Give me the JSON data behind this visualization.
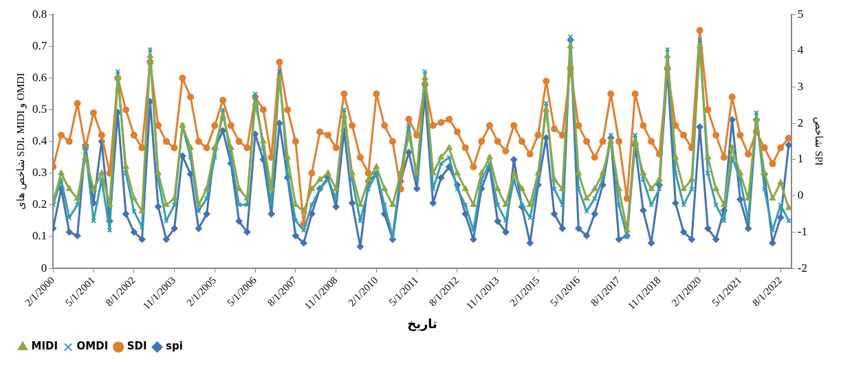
{
  "chart_data": {
    "type": "line",
    "xlabel": "تاریخ",
    "ylabel": "شاخص های SDI، MIDI و OMDI",
    "y2label": "شاخص SPI",
    "legend": "bottom left",
    "x": [
      "2000-02",
      "2000-05",
      "2000-08",
      "2000-11",
      "2001-02",
      "2001-05",
      "2001-08",
      "2001-11",
      "2002-02",
      "2002-05",
      "2002-08",
      "2002-11",
      "2003-02",
      "2003-05",
      "2003-08",
      "2003-11",
      "2004-02",
      "2004-05",
      "2004-08",
      "2004-11",
      "2005-02",
      "2005-05",
      "2005-08",
      "2005-11",
      "2006-02",
      "2006-05",
      "2006-08",
      "2006-11",
      "2007-02",
      "2007-05",
      "2007-08",
      "2007-11",
      "2008-02",
      "2008-05",
      "2008-08",
      "2008-11",
      "2009-02",
      "2009-05",
      "2009-08",
      "2009-11",
      "2010-02",
      "2010-05",
      "2010-08",
      "2010-11",
      "2011-02",
      "2011-05",
      "2011-08",
      "2011-11",
      "2012-02",
      "2012-05",
      "2012-08",
      "2012-11",
      "2013-02",
      "2013-05",
      "2013-08",
      "2013-11",
      "2014-02",
      "2014-05",
      "2014-08",
      "2014-11",
      "2015-02",
      "2015-05",
      "2015-08",
      "2015-11",
      "2016-02",
      "2016-05",
      "2016-08",
      "2016-11",
      "2017-02",
      "2017-05",
      "2017-08",
      "2017-11",
      "2018-02",
      "2018-05",
      "2018-08",
      "2018-11",
      "2019-02",
      "2019-05",
      "2019-08",
      "2019-11",
      "2020-02",
      "2020-05",
      "2020-08",
      "2020-11",
      "2021-02",
      "2021-05",
      "2021-08",
      "2021-11",
      "2022-02",
      "2022-05",
      "2022-08",
      "2022-11"
    ],
    "xlim": [
      "2000-02",
      "2022-12"
    ],
    "xticks": [
      {
        "value": "2000-02",
        "label": "2/1/2000"
      },
      {
        "value": "2001-05",
        "label": "5/1/2001"
      },
      {
        "value": "2002-08",
        "label": "8/1/2002"
      },
      {
        "value": "2003-11",
        "label": "11/1/2003"
      },
      {
        "value": "2005-02",
        "label": "2/1/2005"
      },
      {
        "value": "2006-05",
        "label": "5/1/2006"
      },
      {
        "value": "2007-08",
        "label": "8/1/2007"
      },
      {
        "value": "2008-11",
        "label": "11/1/2008"
      },
      {
        "value": "2010-02",
        "label": "2/1/2010"
      },
      {
        "value": "2011-05",
        "label": "5/1/2011"
      },
      {
        "value": "2012-08",
        "label": "8/1/2012"
      },
      {
        "value": "2013-11",
        "label": "11/1/2013"
      },
      {
        "value": "2015-02",
        "label": "2/1/2015"
      },
      {
        "value": "2016-05",
        "label": "5/1/2016"
      },
      {
        "value": "2017-08",
        "label": "8/1/2017"
      },
      {
        "value": "2018-11",
        "label": "11/1/2018"
      },
      {
        "value": "2020-02",
        "label": "2/1/2020"
      },
      {
        "value": "2021-05",
        "label": "5/1/2021"
      },
      {
        "value": "2022-08",
        "label": "8/1/2022"
      }
    ],
    "ylim": [
      0,
      0.8
    ],
    "yticks": [
      0,
      0.1,
      0.2,
      0.3,
      0.4,
      0.5,
      0.6,
      0.7,
      0.8
    ],
    "y2lim": [
      -2,
      5
    ],
    "y2ticks": [
      -2,
      -1,
      0,
      1,
      2,
      3,
      4,
      5
    ],
    "series": [
      {
        "name": "MIDI",
        "color": "#8aa84a",
        "marker": "triangle",
        "values": [
          0.21,
          0.3,
          0.25,
          0.22,
          0.35,
          0.25,
          0.3,
          0.2,
          0.6,
          0.32,
          0.22,
          0.18,
          0.67,
          0.3,
          0.2,
          0.22,
          0.45,
          0.38,
          0.2,
          0.25,
          0.38,
          0.48,
          0.38,
          0.25,
          0.22,
          0.52,
          0.4,
          0.25,
          0.6,
          0.35,
          0.2,
          0.18,
          0.25,
          0.28,
          0.3,
          0.25,
          0.48,
          0.3,
          0.2,
          0.28,
          0.32,
          0.25,
          0.2,
          0.3,
          0.42,
          0.3,
          0.6,
          0.3,
          0.35,
          0.38,
          0.3,
          0.25,
          0.2,
          0.3,
          0.35,
          0.25,
          0.2,
          0.3,
          0.25,
          0.2,
          0.3,
          0.5,
          0.28,
          0.25,
          0.7,
          0.3,
          0.22,
          0.25,
          0.3,
          0.4,
          0.25,
          0.12,
          0.4,
          0.3,
          0.25,
          0.28,
          0.67,
          0.35,
          0.25,
          0.28,
          0.7,
          0.35,
          0.25,
          0.2,
          0.38,
          0.3,
          0.22,
          0.47,
          0.3,
          0.22,
          0.27,
          0.19
        ]
      },
      {
        "name": "OMDI",
        "color": "#3a9cb0",
        "marker": "cross",
        "values": [
          0.2,
          0.28,
          0.16,
          0.2,
          0.38,
          0.15,
          0.28,
          0.12,
          0.62,
          0.3,
          0.18,
          0.13,
          0.69,
          0.28,
          0.15,
          0.2,
          0.45,
          0.35,
          0.18,
          0.22,
          0.35,
          0.5,
          0.35,
          0.2,
          0.2,
          0.55,
          0.38,
          0.2,
          0.62,
          0.3,
          0.15,
          0.12,
          0.2,
          0.25,
          0.28,
          0.22,
          0.5,
          0.28,
          0.15,
          0.25,
          0.3,
          0.2,
          0.1,
          0.3,
          0.45,
          0.28,
          0.62,
          0.25,
          0.33,
          0.35,
          0.25,
          0.2,
          0.12,
          0.28,
          0.33,
          0.2,
          0.15,
          0.28,
          0.2,
          0.16,
          0.28,
          0.52,
          0.25,
          0.2,
          0.73,
          0.25,
          0.18,
          0.22,
          0.28,
          0.42,
          0.2,
          0.1,
          0.42,
          0.28,
          0.2,
          0.25,
          0.69,
          0.3,
          0.2,
          0.25,
          0.72,
          0.3,
          0.2,
          0.15,
          0.35,
          0.28,
          0.15,
          0.49,
          0.25,
          0.12,
          0.2,
          0.15
        ]
      },
      {
        "name": "SDI",
        "color": "#e07f30",
        "marker": "circle",
        "values": [
          0.32,
          0.42,
          0.4,
          0.52,
          0.38,
          0.49,
          0.42,
          0.3,
          0.6,
          0.5,
          0.42,
          0.38,
          0.65,
          0.45,
          0.4,
          0.38,
          0.6,
          0.54,
          0.4,
          0.38,
          0.45,
          0.53,
          0.45,
          0.4,
          0.38,
          0.54,
          0.5,
          0.35,
          0.65,
          0.5,
          0.4,
          0.14,
          0.3,
          0.43,
          0.42,
          0.38,
          0.55,
          0.45,
          0.35,
          0.3,
          0.55,
          0.45,
          0.4,
          0.25,
          0.47,
          0.42,
          0.58,
          0.45,
          0.46,
          0.47,
          0.43,
          0.38,
          0.32,
          0.4,
          0.45,
          0.4,
          0.37,
          0.45,
          0.4,
          0.36,
          0.42,
          0.59,
          0.44,
          0.42,
          0.63,
          0.45,
          0.4,
          0.35,
          0.4,
          0.55,
          0.4,
          0.22,
          0.55,
          0.45,
          0.4,
          0.36,
          0.63,
          0.45,
          0.42,
          0.38,
          0.75,
          0.5,
          0.42,
          0.35,
          0.54,
          0.42,
          0.36,
          0.43,
          0.38,
          0.33,
          0.38,
          0.41
        ]
      },
      {
        "name": "spi",
        "color": "#4472b0",
        "marker": "diamond",
        "axis": "y2",
        "values": [
          -0.9,
          0.2,
          -1.0,
          -1.1,
          1.4,
          -0.2,
          1.5,
          -0.7,
          2.3,
          -0.5,
          -1.0,
          -1.2,
          2.6,
          -0.3,
          -1.2,
          -0.9,
          1.1,
          0.6,
          -0.9,
          -0.5,
          1.3,
          1.8,
          0.9,
          -0.7,
          -1.0,
          1.7,
          1.0,
          -0.5,
          2.0,
          0.5,
          -1.1,
          -1.3,
          -0.5,
          0.2,
          0.5,
          -0.3,
          1.8,
          -0.2,
          -1.4,
          0.4,
          0.6,
          -0.5,
          -1.2,
          0.4,
          1.2,
          0.2,
          2.8,
          -0.2,
          0.5,
          0.8,
          0.3,
          -0.5,
          -1.2,
          0.2,
          0.8,
          -0.7,
          -1.0,
          1.0,
          -0.3,
          -1.3,
          0.3,
          1.6,
          -0.5,
          -0.9,
          4.3,
          -0.9,
          -1.1,
          -0.5,
          0.3,
          1.6,
          -1.2,
          -1.1,
          1.4,
          -0.4,
          -1.3,
          0.3,
          3.5,
          -0.2,
          -1.0,
          -1.2,
          1.9,
          -0.9,
          -1.2,
          -0.4,
          2.1,
          -0.1,
          -0.9,
          2.1,
          0.6,
          -1.3,
          -0.6,
          1.4
        ]
      }
    ]
  }
}
